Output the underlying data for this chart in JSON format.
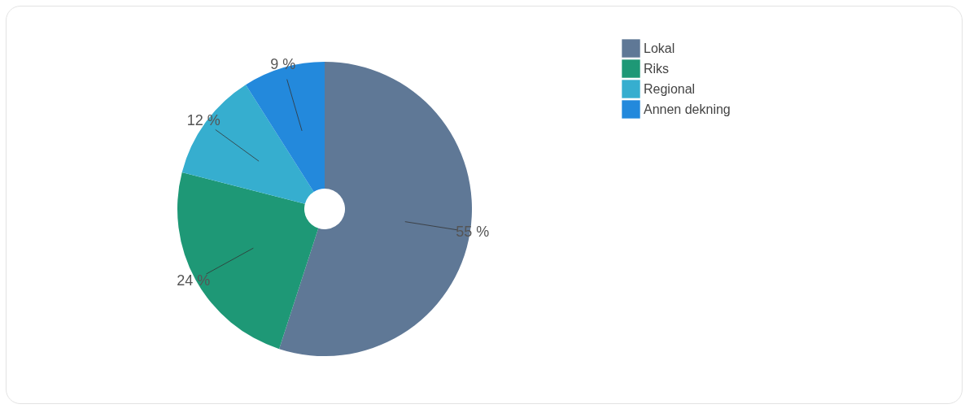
{
  "chart_data": {
    "type": "donut",
    "categories": [
      "Lokal",
      "Riks",
      "Regional",
      "Annen dekning"
    ],
    "values": [
      55,
      24,
      12,
      9
    ],
    "colors": [
      "#5f7896",
      "#1e9876",
      "#36aecf",
      "#2389dc"
    ],
    "value_labels": [
      "55 %",
      "24 %",
      "12 %",
      "9 %"
    ],
    "legend": "top right"
  }
}
